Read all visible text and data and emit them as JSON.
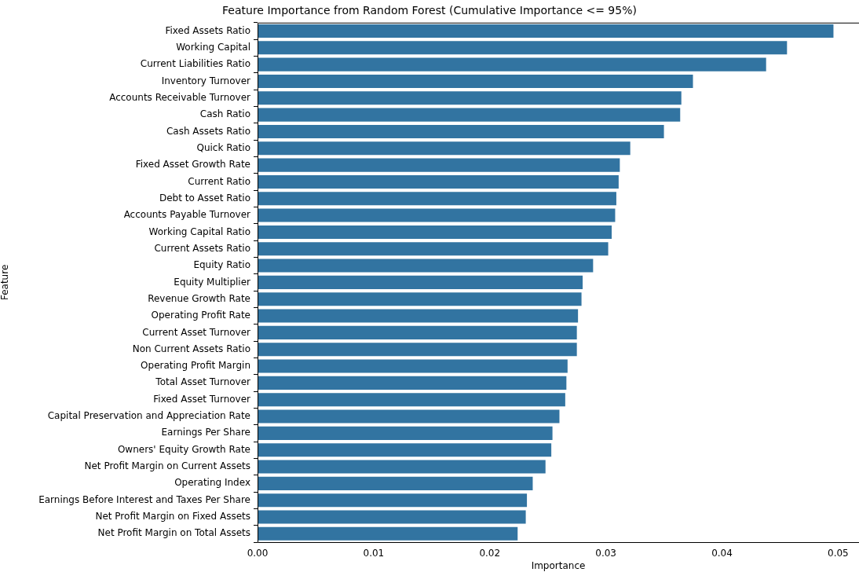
{
  "chart_data": {
    "type": "bar",
    "orientation": "horizontal",
    "title": "Feature Importance from Random Forest (Cumulative Importance <= 95%)",
    "xlabel": "Importance",
    "ylabel": "Feature",
    "categories": [
      "Fixed Assets Ratio",
      "Working Capital",
      "Current Liabilities Ratio",
      "Inventory Turnover",
      "Accounts Receivable Turnover",
      "Cash Ratio",
      "Cash Assets Ratio",
      "Quick Ratio",
      "Fixed Asset Growth Rate",
      "Current Ratio",
      "Debt to Asset Ratio",
      "Accounts Payable Turnover",
      "Working Capital Ratio",
      "Current Assets Ratio",
      "Equity Ratio",
      "Equity Multiplier",
      "Revenue Growth Rate",
      "Operating Profit Rate",
      "Current Asset Turnover",
      "Non Current Assets Ratio",
      "Operating Profit Margin",
      "Total Asset Turnover",
      "Fixed Asset Turnover",
      "Capital Preservation and Appreciation Rate",
      "Earnings Per Share",
      "Owners' Equity Growth Rate",
      "Net Profit Margin on Current Assets",
      "Operating Index",
      "Earnings Before Interest and Taxes Per Share",
      "Net Profit Margin on Fixed Assets",
      "Net Profit Margin on Total Assets"
    ],
    "values": [
      0.0496,
      0.0456,
      0.0438,
      0.0375,
      0.0365,
      0.0364,
      0.035,
      0.0321,
      0.0312,
      0.0311,
      0.0309,
      0.0308,
      0.0305,
      0.0302,
      0.0289,
      0.028,
      0.0279,
      0.0276,
      0.0275,
      0.0275,
      0.0267,
      0.0266,
      0.0265,
      0.026,
      0.0254,
      0.0253,
      0.0248,
      0.0237,
      0.0232,
      0.0231,
      0.0224
    ],
    "color": "#3274a1",
    "xlim": [
      0,
      0.0518
    ],
    "xticks": [
      {
        "value": 0,
        "label": "0.00"
      },
      {
        "value": 0.01,
        "label": "0.01"
      },
      {
        "value": 0.02,
        "label": "0.02"
      },
      {
        "value": 0.03,
        "label": "0.03"
      },
      {
        "value": 0.04,
        "label": "0.04"
      },
      {
        "value": 0.05,
        "label": "0.05"
      }
    ],
    "grid": false,
    "legend": false
  }
}
